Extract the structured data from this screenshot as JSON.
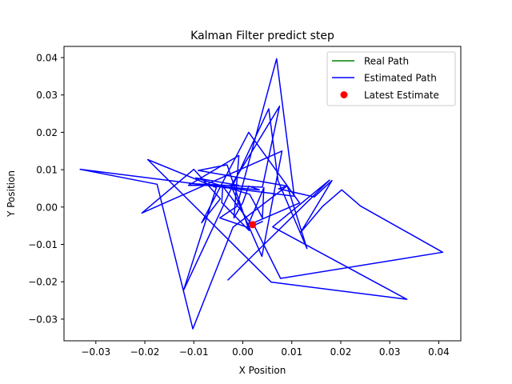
{
  "chart_data": {
    "type": "line",
    "title": "Kalman Filter predict step",
    "xlabel": "X Position",
    "ylabel": "Y Position",
    "xlim": [
      -0.0365,
      0.0445
    ],
    "ylim": [
      -0.0358,
      0.043
    ],
    "xticks": [
      -0.03,
      -0.02,
      -0.01,
      0.0,
      0.01,
      0.02,
      0.03,
      0.04
    ],
    "xtick_labels": [
      "−0.03",
      "−0.02",
      "−0.01",
      "0.00",
      "0.01",
      "0.02",
      "0.03",
      "0.04"
    ],
    "yticks": [
      -0.03,
      -0.02,
      -0.01,
      0.0,
      0.01,
      0.02,
      0.03,
      0.04
    ],
    "ytick_labels": [
      "−0.03",
      "−0.02",
      "−0.01",
      "0.00",
      "0.01",
      "0.02",
      "0.03",
      "0.04"
    ],
    "grid": false,
    "legend_position": "top-right",
    "colors": {
      "real": "#008000",
      "estimated": "#0000ff",
      "latest": "#ff0000"
    },
    "series": [
      {
        "name": "Real Path",
        "kind": "line",
        "x": [],
        "y": []
      },
      {
        "name": "Estimated Path",
        "kind": "line",
        "x": [
          -0.0031,
          0.0177,
          0.0061,
          0.0335,
          0.0058,
          -0.0194,
          -0.0054,
          -0.0121,
          0.0053,
          0.0072,
          0.0131,
          0.0091,
          -0.0091,
          -0.0032,
          0.0013,
          -0.0043,
          -0.0041,
          0.0017,
          0.0116,
          0.0012,
          -0.0084,
          -0.0046,
          -0.01,
          -0.0206,
          0.008,
          0.0039,
          -0.0024,
          0.0075,
          0.004,
          -0.0109,
          0.0034,
          0.0012,
          -0.0,
          -0.0018,
          -0.0008,
          -0.0111,
          -0.0008,
          -0.0096,
          0.0014,
          0.004,
          0.0043,
          0.0009,
          -0.0047,
          -0.0012,
          0.0069,
          0.0105,
          -0.0332,
          -0.0175,
          -0.0102,
          -0.002,
          0.0089,
          0.0073,
          0.0146,
          0.0182,
          0.0118,
          0.0163,
          0.0202,
          0.024,
          0.0408,
          0.0077,
          0.0023,
          0.0041
        ],
        "y": [
          -0.0196,
          0.0072,
          -0.0053,
          -0.0247,
          -0.0201,
          0.0127,
          0.0052,
          -0.0223,
          0.0263,
          0.007,
          -0.0111,
          0.0056,
          0.0098,
          0.0113,
          -0.0063,
          0.0012,
          0.0056,
          -0.0045,
          0.0011,
          0.02,
          -0.0042,
          0.0022,
          0.0101,
          -0.0016,
          0.015,
          -0.0132,
          0.0057,
          0.027,
          0.0053,
          0.0063,
          0.0046,
          0.0056,
          0.0012,
          -0.0029,
          0.0138,
          0.0058,
          0.0058,
          0.0078,
          0.0034,
          -0.0029,
          0.0052,
          -0.0054,
          -0.0029,
          0.0002,
          0.0397,
          0.0029,
          0.0101,
          0.0061,
          -0.0326,
          -0.0054,
          0.0055,
          0.0049,
          0.0027,
          0.0071,
          -0.0068,
          0.0002,
          0.0046,
          0.0003,
          -0.0121,
          -0.0191,
          -0.0049,
          -0.0038
        ]
      },
      {
        "name": "Latest Estimate",
        "kind": "scatter",
        "x": [
          0.002
        ],
        "y": [
          -0.0047
        ]
      }
    ]
  }
}
